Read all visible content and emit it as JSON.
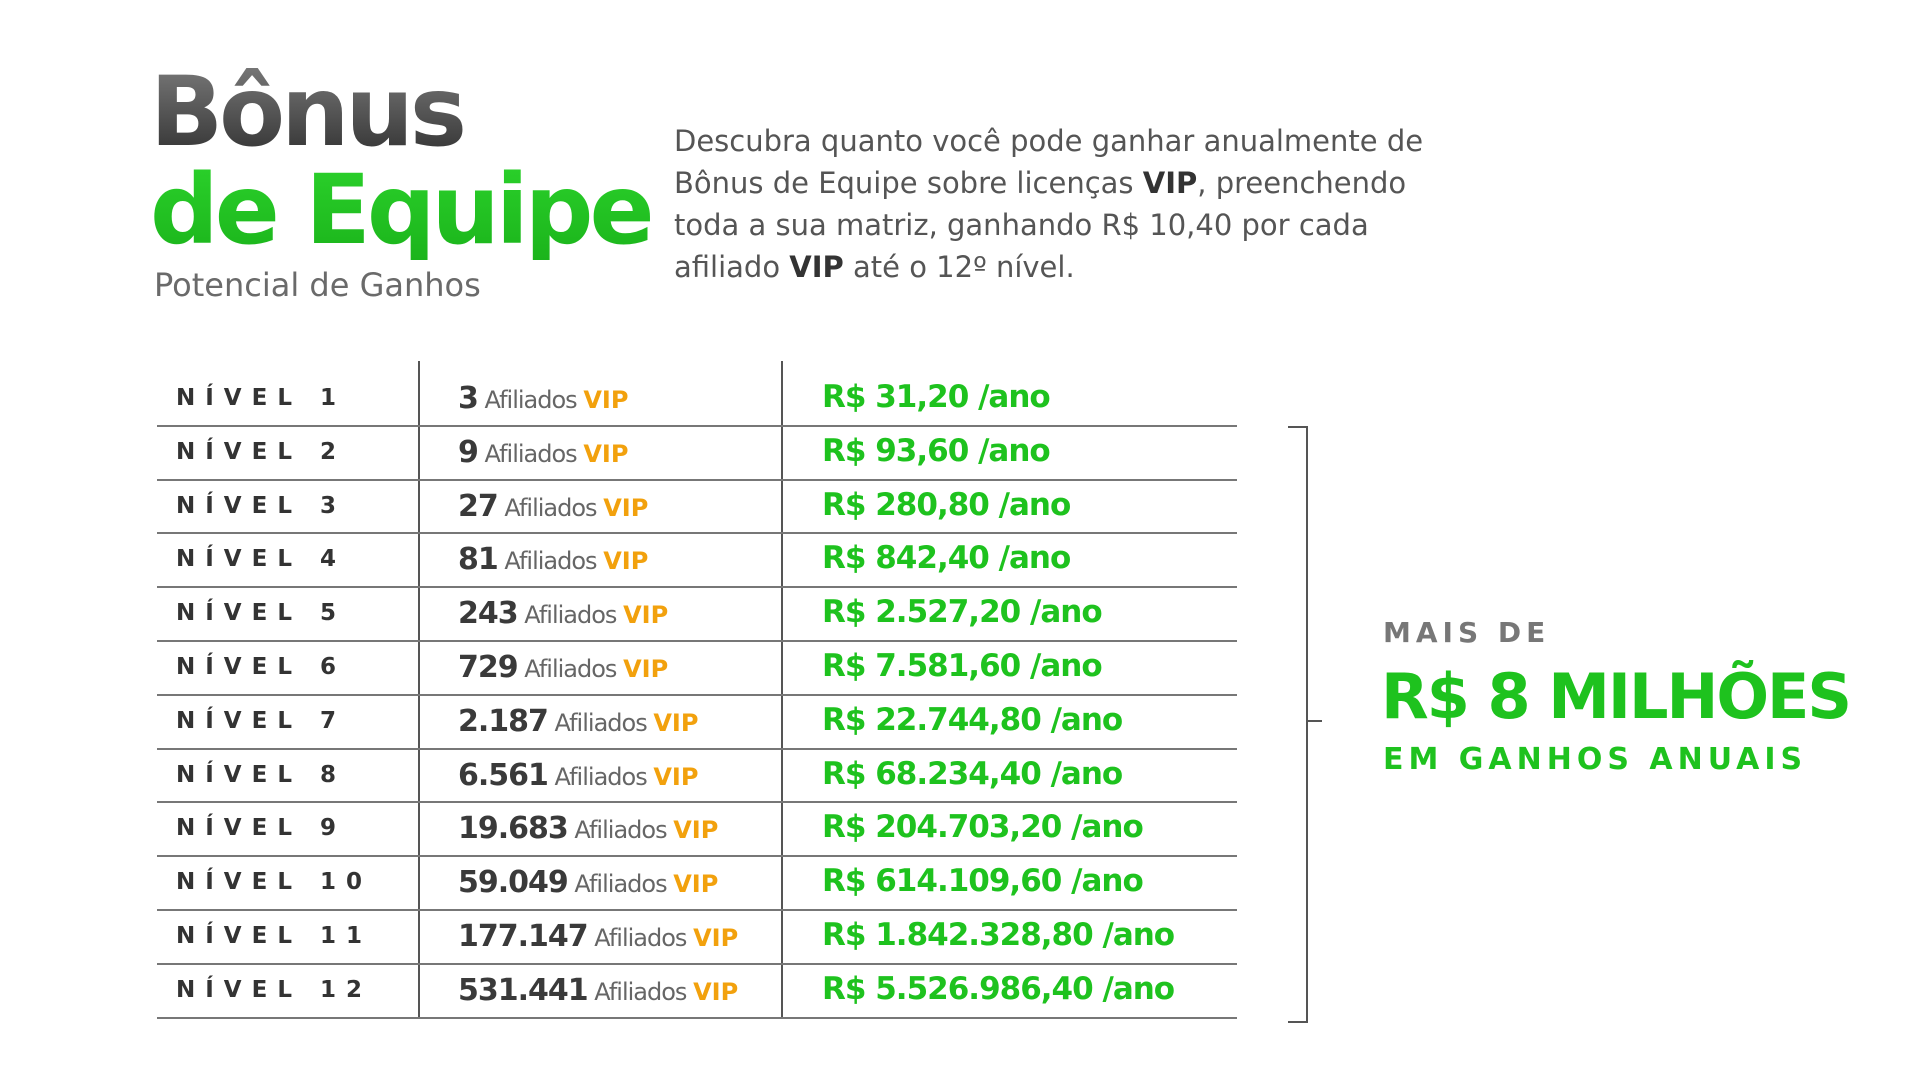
{
  "header": {
    "title_line1": "Bônus",
    "title_line2": "de Equipe",
    "subtitle": "Potencial de Ganhos",
    "description": [
      "Descubra quanto você pode ganhar anualmente de Bônus de Equipe sobre licenças ",
      "VIP",
      ", preenchendo toda a sua matriz, ganhando R$ 10,40 por cada afiliado ",
      "VIP",
      " até o 12º nível."
    ]
  },
  "table": {
    "rows": [
      {
        "level": "NÍVEL 1",
        "count": "3",
        "unit": "Afiliados",
        "badge": "VIP",
        "amount": "R$ 31,20",
        "period": "/ano"
      },
      {
        "level": "NÍVEL 2",
        "count": "9",
        "unit": "Afiliados",
        "badge": "VIP",
        "amount": "R$ 93,60",
        "period": "/ano"
      },
      {
        "level": "NÍVEL 3",
        "count": "27",
        "unit": "Afiliados",
        "badge": "VIP",
        "amount": "R$ 280,80",
        "period": "/ano"
      },
      {
        "level": "NÍVEL 4",
        "count": "81",
        "unit": "Afiliados",
        "badge": "VIP",
        "amount": "R$ 842,40",
        "period": "/ano"
      },
      {
        "level": "NÍVEL 5",
        "count": "243",
        "unit": "Afiliados",
        "badge": "VIP",
        "amount": "R$ 2.527,20",
        "period": "/ano"
      },
      {
        "level": "NÍVEL 6",
        "count": "729",
        "unit": "Afiliados",
        "badge": "VIP",
        "amount": "R$ 7.581,60",
        "period": "/ano"
      },
      {
        "level": "NÍVEL 7",
        "count": "2.187",
        "unit": "Afiliados",
        "badge": "VIP",
        "amount": "R$ 22.744,80",
        "period": "/ano"
      },
      {
        "level": "NÍVEL 8",
        "count": "6.561",
        "unit": "Afiliados",
        "badge": "VIP",
        "amount": "R$ 68.234,40",
        "period": "/ano"
      },
      {
        "level": "NÍVEL 9",
        "count": "19.683",
        "unit": "Afiliados",
        "badge": "VIP",
        "amount": "R$ 204.703,20",
        "period": "/ano"
      },
      {
        "level": "NÍVEL 10",
        "count": "59.049",
        "unit": "Afiliados",
        "badge": "VIP",
        "amount": "R$ 614.109,60",
        "period": "/ano"
      },
      {
        "level": "NÍVEL 11",
        "count": "177.147",
        "unit": "Afiliados",
        "badge": "VIP",
        "amount": "R$ 1.842.328,80",
        "period": "/ano"
      },
      {
        "level": "NÍVEL 12",
        "count": "531.441",
        "unit": "Afiliados",
        "badge": "VIP",
        "amount": "R$ 5.526.986,40",
        "period": "/ano"
      }
    ]
  },
  "callout": {
    "line1": "MAIS DE",
    "line2": "R$ 8 MILHÕES",
    "line3": "EM GANHOS ANUAIS"
  }
}
